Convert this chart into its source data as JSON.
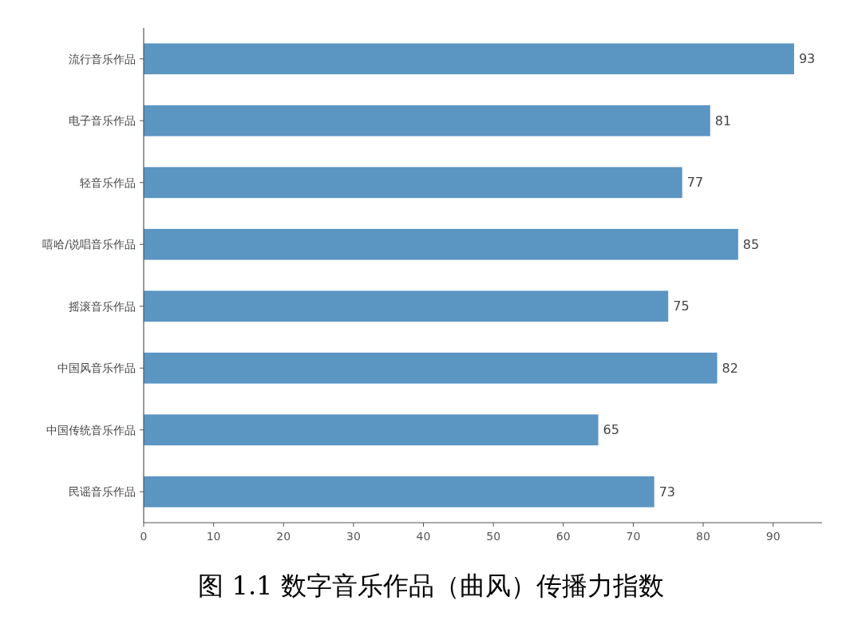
{
  "chart_data": {
    "type": "bar",
    "orientation": "horizontal",
    "title": "图 1.1 数字音乐作品（曲风）传播力指数",
    "categories": [
      "流行音乐作品",
      "电子音乐作品",
      "轻音乐作品",
      "嘻哈/说唱音乐作品",
      "摇滚音乐作品",
      "中国风音乐作品",
      "中国传统音乐作品",
      "民谣音乐作品"
    ],
    "values": [
      93,
      81,
      77,
      85,
      75,
      82,
      65,
      73
    ],
    "color": "#5b95c2",
    "xlim": [
      0,
      97
    ],
    "xticks": [
      0,
      10,
      20,
      30,
      40,
      50,
      60,
      70,
      80,
      90
    ],
    "data_labels": true
  }
}
